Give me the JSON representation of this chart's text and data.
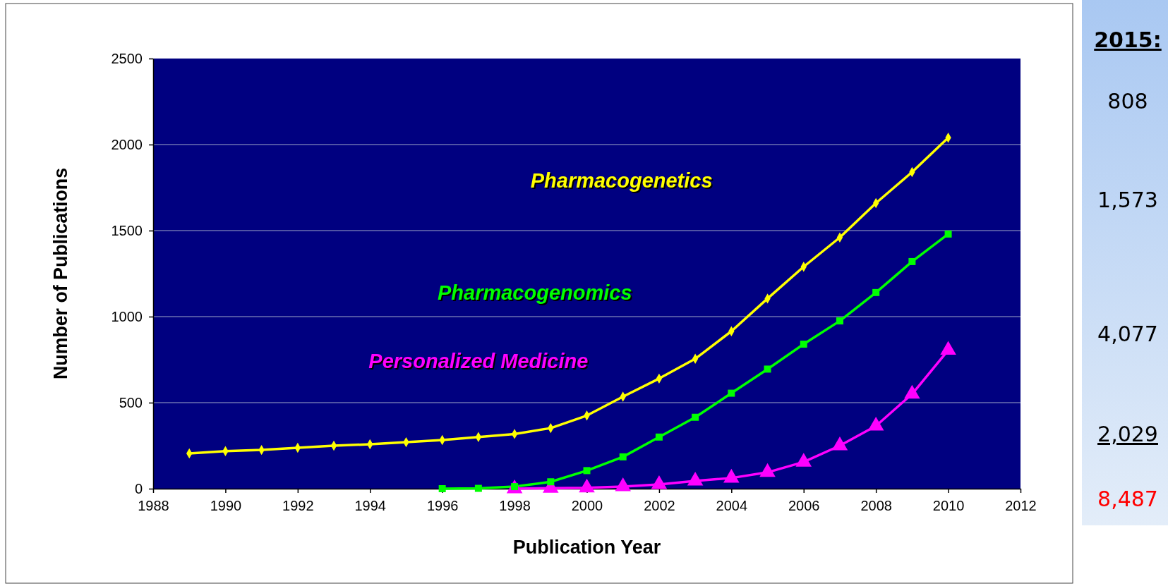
{
  "chart_data": {
    "type": "line",
    "xlabel": "Publication Year",
    "ylabel": "Number of Publications",
    "xlim": [
      1988,
      2012
    ],
    "xticks": [
      1988,
      1990,
      1992,
      1994,
      1996,
      1998,
      2000,
      2002,
      2004,
      2006,
      2008,
      2010,
      2012
    ],
    "ylim": [
      0,
      2500
    ],
    "yticks": [
      0,
      500,
      1000,
      1500,
      2000,
      2500
    ],
    "grid": "y",
    "line_style": "solid",
    "series": [
      {
        "name": "Pharmacogenetics",
        "color": "#ffff00",
        "marker": "diamond",
        "x": [
          1989,
          1990,
          1991,
          1992,
          1993,
          1994,
          1995,
          1996,
          1997,
          1998,
          1999,
          2000,
          2001,
          2002,
          2003,
          2004,
          2005,
          2006,
          2007,
          2008,
          2009,
          2010
        ],
        "values": [
          205,
          218,
          225,
          238,
          250,
          258,
          270,
          283,
          300,
          318,
          352,
          425,
          535,
          640,
          755,
          915,
          1105,
          1290,
          1460,
          1660,
          1840,
          2040
        ]
      },
      {
        "name": "Pharmacogenomics",
        "color": "#00ff00",
        "marker": "square",
        "x": [
          1996,
          1997,
          1998,
          1999,
          2000,
          2001,
          2002,
          2003,
          2004,
          2005,
          2006,
          2007,
          2008,
          2009,
          2010
        ],
        "values": [
          0,
          2,
          12,
          40,
          105,
          185,
          300,
          415,
          555,
          695,
          840,
          975,
          1140,
          1320,
          1480
        ]
      },
      {
        "name": "Personalized Medicine",
        "color": "#ff00ff",
        "marker": "triangle",
        "x": [
          1998,
          1999,
          2000,
          2001,
          2002,
          2003,
          2004,
          2005,
          2006,
          2007,
          2008,
          2009,
          2010
        ],
        "values": [
          0,
          3,
          5,
          12,
          25,
          45,
          62,
          95,
          155,
          250,
          365,
          550,
          805
        ]
      }
    ],
    "annotations": [
      "2015:",
      "808",
      "1,573",
      "4,077",
      "2,029",
      "8,487"
    ]
  }
}
